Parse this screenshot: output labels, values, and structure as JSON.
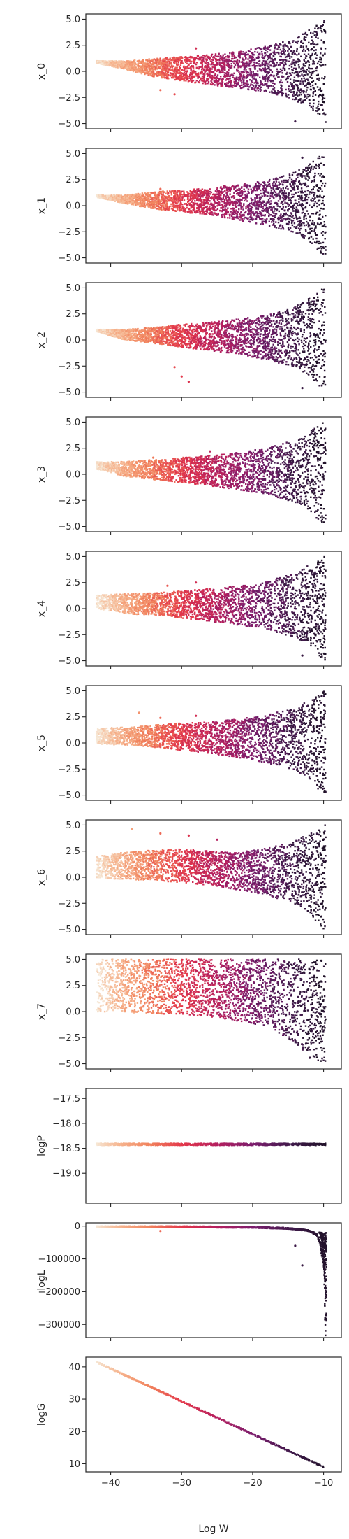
{
  "figure": {
    "xlabel": "Log W",
    "x_ticks": [
      -40,
      -30,
      -20,
      -10
    ],
    "xlim": [
      -43.5,
      -7.5
    ],
    "shared_x": true,
    "colormap": [
      "#f6e7d5",
      "#f6b48e",
      "#f1825c",
      "#e3374b",
      "#b41f5f",
      "#7a1d6d",
      "#3f1a4a",
      "#1c1024"
    ],
    "axes_color": "#262626",
    "background": "#ffffff"
  },
  "chart_data": [
    {
      "type": "scatter",
      "ylabel": "x_0",
      "ylim": [
        -5.5,
        5.5
      ],
      "y_ticks": [
        5.0,
        2.5,
        0.0,
        -2.5,
        -5.0
      ],
      "y_tick_labels": [
        "5.0",
        "2.5",
        "0.0",
        "−2.5",
        "−5.0"
      ],
      "scale": "linear",
      "envelope": [
        [
          -42,
          1.0,
          0.8
        ],
        [
          -38,
          1.0,
          0.2
        ],
        [
          -34,
          1.2,
          -0.5
        ],
        [
          -30,
          1.4,
          -0.9
        ],
        [
          -26,
          1.6,
          -1.3
        ],
        [
          -22,
          1.9,
          -1.6
        ],
        [
          -18,
          2.4,
          -2.0
        ],
        [
          -14,
          3.2,
          -2.8
        ],
        [
          -12,
          4.0,
          -3.5
        ],
        [
          -10,
          5.0,
          -5.0
        ]
      ],
      "outliers": [
        {
          "x": -28,
          "y": 2.2
        },
        {
          "x": -33,
          "y": -1.8
        },
        {
          "x": -31,
          "y": -2.2
        },
        {
          "x": -14,
          "y": -4.8
        }
      ]
    },
    {
      "type": "scatter",
      "ylabel": "x_1",
      "ylim": [
        -5.5,
        5.5
      ],
      "y_ticks": [
        5.0,
        2.5,
        0.0,
        -2.5,
        -5.0
      ],
      "y_tick_labels": [
        "5.0",
        "2.5",
        "0.0",
        "−2.5",
        "−5.0"
      ],
      "scale": "linear",
      "envelope": [
        [
          -42,
          1.0,
          0.8
        ],
        [
          -38,
          1.0,
          0.2
        ],
        [
          -34,
          1.3,
          -0.3
        ],
        [
          -30,
          1.5,
          -0.6
        ],
        [
          -26,
          1.7,
          -0.9
        ],
        [
          -22,
          2.0,
          -1.4
        ],
        [
          -18,
          2.4,
          -1.9
        ],
        [
          -14,
          3.2,
          -2.6
        ],
        [
          -12,
          4.0,
          -3.4
        ],
        [
          -10,
          5.0,
          -5.0
        ]
      ],
      "outliers": [
        {
          "x": -13,
          "y": 4.6
        },
        {
          "x": -24,
          "y": 1.9
        },
        {
          "x": -33,
          "y": 1.6
        }
      ]
    },
    {
      "type": "scatter",
      "ylabel": "x_2",
      "ylim": [
        -5.5,
        5.5
      ],
      "y_ticks": [
        5.0,
        2.5,
        0.0,
        -2.5,
        -5.0
      ],
      "y_tick_labels": [
        "5.0",
        "2.5",
        "0.0",
        "−2.5",
        "−5.0"
      ],
      "scale": "linear",
      "envelope": [
        [
          -42,
          1.0,
          0.8
        ],
        [
          -38,
          1.0,
          0.0
        ],
        [
          -34,
          1.2,
          -0.3
        ],
        [
          -30,
          1.5,
          -0.7
        ],
        [
          -26,
          1.7,
          -1.0
        ],
        [
          -22,
          2.0,
          -1.4
        ],
        [
          -18,
          2.4,
          -1.9
        ],
        [
          -14,
          3.2,
          -2.6
        ],
        [
          -12,
          4.0,
          -3.4
        ],
        [
          -10,
          5.0,
          -5.0
        ]
      ],
      "outliers": [
        {
          "x": -30,
          "y": -3.5
        },
        {
          "x": -31,
          "y": -2.6
        },
        {
          "x": -29,
          "y": -4.0
        },
        {
          "x": -13,
          "y": -4.6
        }
      ]
    },
    {
      "type": "scatter",
      "ylabel": "x_3",
      "ylim": [
        -5.5,
        5.5
      ],
      "y_ticks": [
        5.0,
        2.5,
        0.0,
        -2.5,
        -5.0
      ],
      "y_tick_labels": [
        "5.0",
        "2.5",
        "0.0",
        "−2.5",
        "−5.0"
      ],
      "scale": "linear",
      "envelope": [
        [
          -42,
          1.2,
          0.5
        ],
        [
          -38,
          1.2,
          -0.2
        ],
        [
          -34,
          1.4,
          -0.5
        ],
        [
          -30,
          1.6,
          -0.8
        ],
        [
          -26,
          1.8,
          -1.1
        ],
        [
          -22,
          2.1,
          -1.5
        ],
        [
          -18,
          2.5,
          -1.9
        ],
        [
          -14,
          3.3,
          -2.7
        ],
        [
          -12,
          4.1,
          -3.5
        ],
        [
          -10,
          5.0,
          -5.0
        ]
      ],
      "outliers": [
        {
          "x": -34,
          "y": 1.6
        },
        {
          "x": -26,
          "y": 2.2
        }
      ]
    },
    {
      "type": "scatter",
      "ylabel": "x_4",
      "ylim": [
        -5.5,
        5.5
      ],
      "y_ticks": [
        5.0,
        2.5,
        0.0,
        -2.5,
        -5.0
      ],
      "y_tick_labels": [
        "5.0",
        "2.5",
        "0.0",
        "−2.5",
        "−5.0"
      ],
      "scale": "linear",
      "envelope": [
        [
          -42,
          1.3,
          0.0
        ],
        [
          -38,
          1.4,
          -0.5
        ],
        [
          -34,
          1.5,
          -0.6
        ],
        [
          -30,
          1.7,
          -0.9
        ],
        [
          -26,
          1.9,
          -1.2
        ],
        [
          -22,
          2.2,
          -1.6
        ],
        [
          -18,
          2.6,
          -2.0
        ],
        [
          -14,
          3.4,
          -2.8
        ],
        [
          -12,
          4.2,
          -3.6
        ],
        [
          -10,
          5.0,
          -5.0
        ]
      ],
      "outliers": [
        {
          "x": -32,
          "y": 2.2
        },
        {
          "x": -28,
          "y": 2.5
        },
        {
          "x": -13,
          "y": -4.5
        }
      ]
    },
    {
      "type": "scatter",
      "ylabel": "x_5",
      "ylim": [
        -5.5,
        5.5
      ],
      "y_ticks": [
        5.0,
        2.5,
        0.0,
        -2.5,
        -5.0
      ],
      "y_tick_labels": [
        "5.0",
        "2.5",
        "0.0",
        "−2.5",
        "−5.0"
      ],
      "scale": "linear",
      "envelope": [
        [
          -42,
          1.4,
          -0.1
        ],
        [
          -38,
          1.5,
          -0.2
        ],
        [
          -34,
          1.7,
          -0.4
        ],
        [
          -30,
          1.9,
          -0.7
        ],
        [
          -26,
          2.0,
          -1.0
        ],
        [
          -22,
          2.3,
          -1.4
        ],
        [
          -18,
          2.7,
          -1.9
        ],
        [
          -14,
          3.4,
          -2.7
        ],
        [
          -12,
          4.2,
          -3.5
        ],
        [
          -10,
          5.0,
          -5.0
        ]
      ],
      "outliers": [
        {
          "x": -36,
          "y": 2.9
        },
        {
          "x": -33,
          "y": 2.4
        },
        {
          "x": -28,
          "y": 2.6
        },
        {
          "x": -16,
          "y": 2.7
        }
      ]
    },
    {
      "type": "scatter",
      "ylabel": "x_6",
      "ylim": [
        -5.5,
        5.5
      ],
      "y_ticks": [
        5.0,
        2.5,
        0.0,
        -2.5,
        -5.0
      ],
      "y_tick_labels": [
        "5.0",
        "2.5",
        "0.0",
        "−2.5",
        "−5.0"
      ],
      "scale": "linear",
      "envelope": [
        [
          -42,
          2.0,
          -0.1
        ],
        [
          -38,
          2.4,
          -0.2
        ],
        [
          -34,
          2.6,
          -0.3
        ],
        [
          -30,
          2.7,
          -0.5
        ],
        [
          -26,
          2.5,
          -0.8
        ],
        [
          -22,
          2.4,
          -1.2
        ],
        [
          -18,
          2.8,
          -1.7
        ],
        [
          -14,
          3.5,
          -2.6
        ],
        [
          -12,
          4.2,
          -3.5
        ],
        [
          -10,
          5.0,
          -5.0
        ]
      ],
      "outliers": [
        {
          "x": -37,
          "y": 4.6
        },
        {
          "x": -33,
          "y": 4.2
        },
        {
          "x": -29,
          "y": 4.0
        },
        {
          "x": -25,
          "y": 3.6
        }
      ]
    },
    {
      "type": "scatter",
      "ylabel": "x_7",
      "ylim": [
        -5.5,
        5.5
      ],
      "y_ticks": [
        5.0,
        2.5,
        0.0,
        -2.5,
        -5.0
      ],
      "y_tick_labels": [
        "5.0",
        "2.5",
        "0.0",
        "−2.5",
        "−5.0"
      ],
      "scale": "linear",
      "envelope": [
        [
          -42,
          5.0,
          0.0
        ],
        [
          -38,
          5.0,
          -0.1
        ],
        [
          -34,
          5.0,
          -0.2
        ],
        [
          -30,
          5.0,
          -0.3
        ],
        [
          -26,
          5.0,
          -0.5
        ],
        [
          -22,
          5.0,
          -0.9
        ],
        [
          -18,
          5.0,
          -1.4
        ],
        [
          -14,
          5.0,
          -3.0
        ],
        [
          -12,
          5.0,
          -4.5
        ],
        [
          -10,
          5.0,
          -5.0
        ]
      ],
      "outliers": [
        {
          "x": -36,
          "y": 4.9
        },
        {
          "x": -30,
          "y": 4.9
        }
      ]
    },
    {
      "type": "scatter",
      "ylabel": "logP",
      "ylim": [
        -19.6,
        -17.3
      ],
      "y_ticks": [
        -17.5,
        -18.0,
        -18.5,
        -19.0
      ],
      "y_tick_labels": [
        "−17.5",
        "−18.0",
        "−18.5",
        "−19.0"
      ],
      "scale": "linear",
      "constant_value": -18.42
    },
    {
      "type": "scatter",
      "ylabel": "logL",
      "ylim": [
        -340000,
        10000
      ],
      "y_ticks": [
        0,
        -100000,
        -200000,
        -300000
      ],
      "y_tick_labels": [
        "0",
        "−100000",
        "−200000",
        "−300000"
      ],
      "scale": "linear",
      "curve": [
        [
          -42,
          0
        ],
        [
          -30,
          -300
        ],
        [
          -20,
          -1500
        ],
        [
          -15,
          -5000
        ],
        [
          -12,
          -12000
        ],
        [
          -11,
          -22000
        ],
        [
          -10.5,
          -40000
        ],
        [
          -10,
          -100000
        ],
        [
          -9.7,
          -300000
        ]
      ],
      "outliers": [
        {
          "x": -13,
          "y": -120000
        },
        {
          "x": -14,
          "y": -60000
        },
        {
          "x": -33,
          "y": -15000
        }
      ]
    },
    {
      "type": "scatter",
      "ylabel": "logG",
      "ylim": [
        7.5,
        43
      ],
      "y_ticks": [
        40,
        30,
        20,
        10
      ],
      "y_tick_labels": [
        "40",
        "30",
        "20",
        "10"
      ],
      "scale": "linear",
      "line": [
        [
          -42,
          41.5
        ],
        [
          -10,
          9.0
        ]
      ]
    }
  ]
}
